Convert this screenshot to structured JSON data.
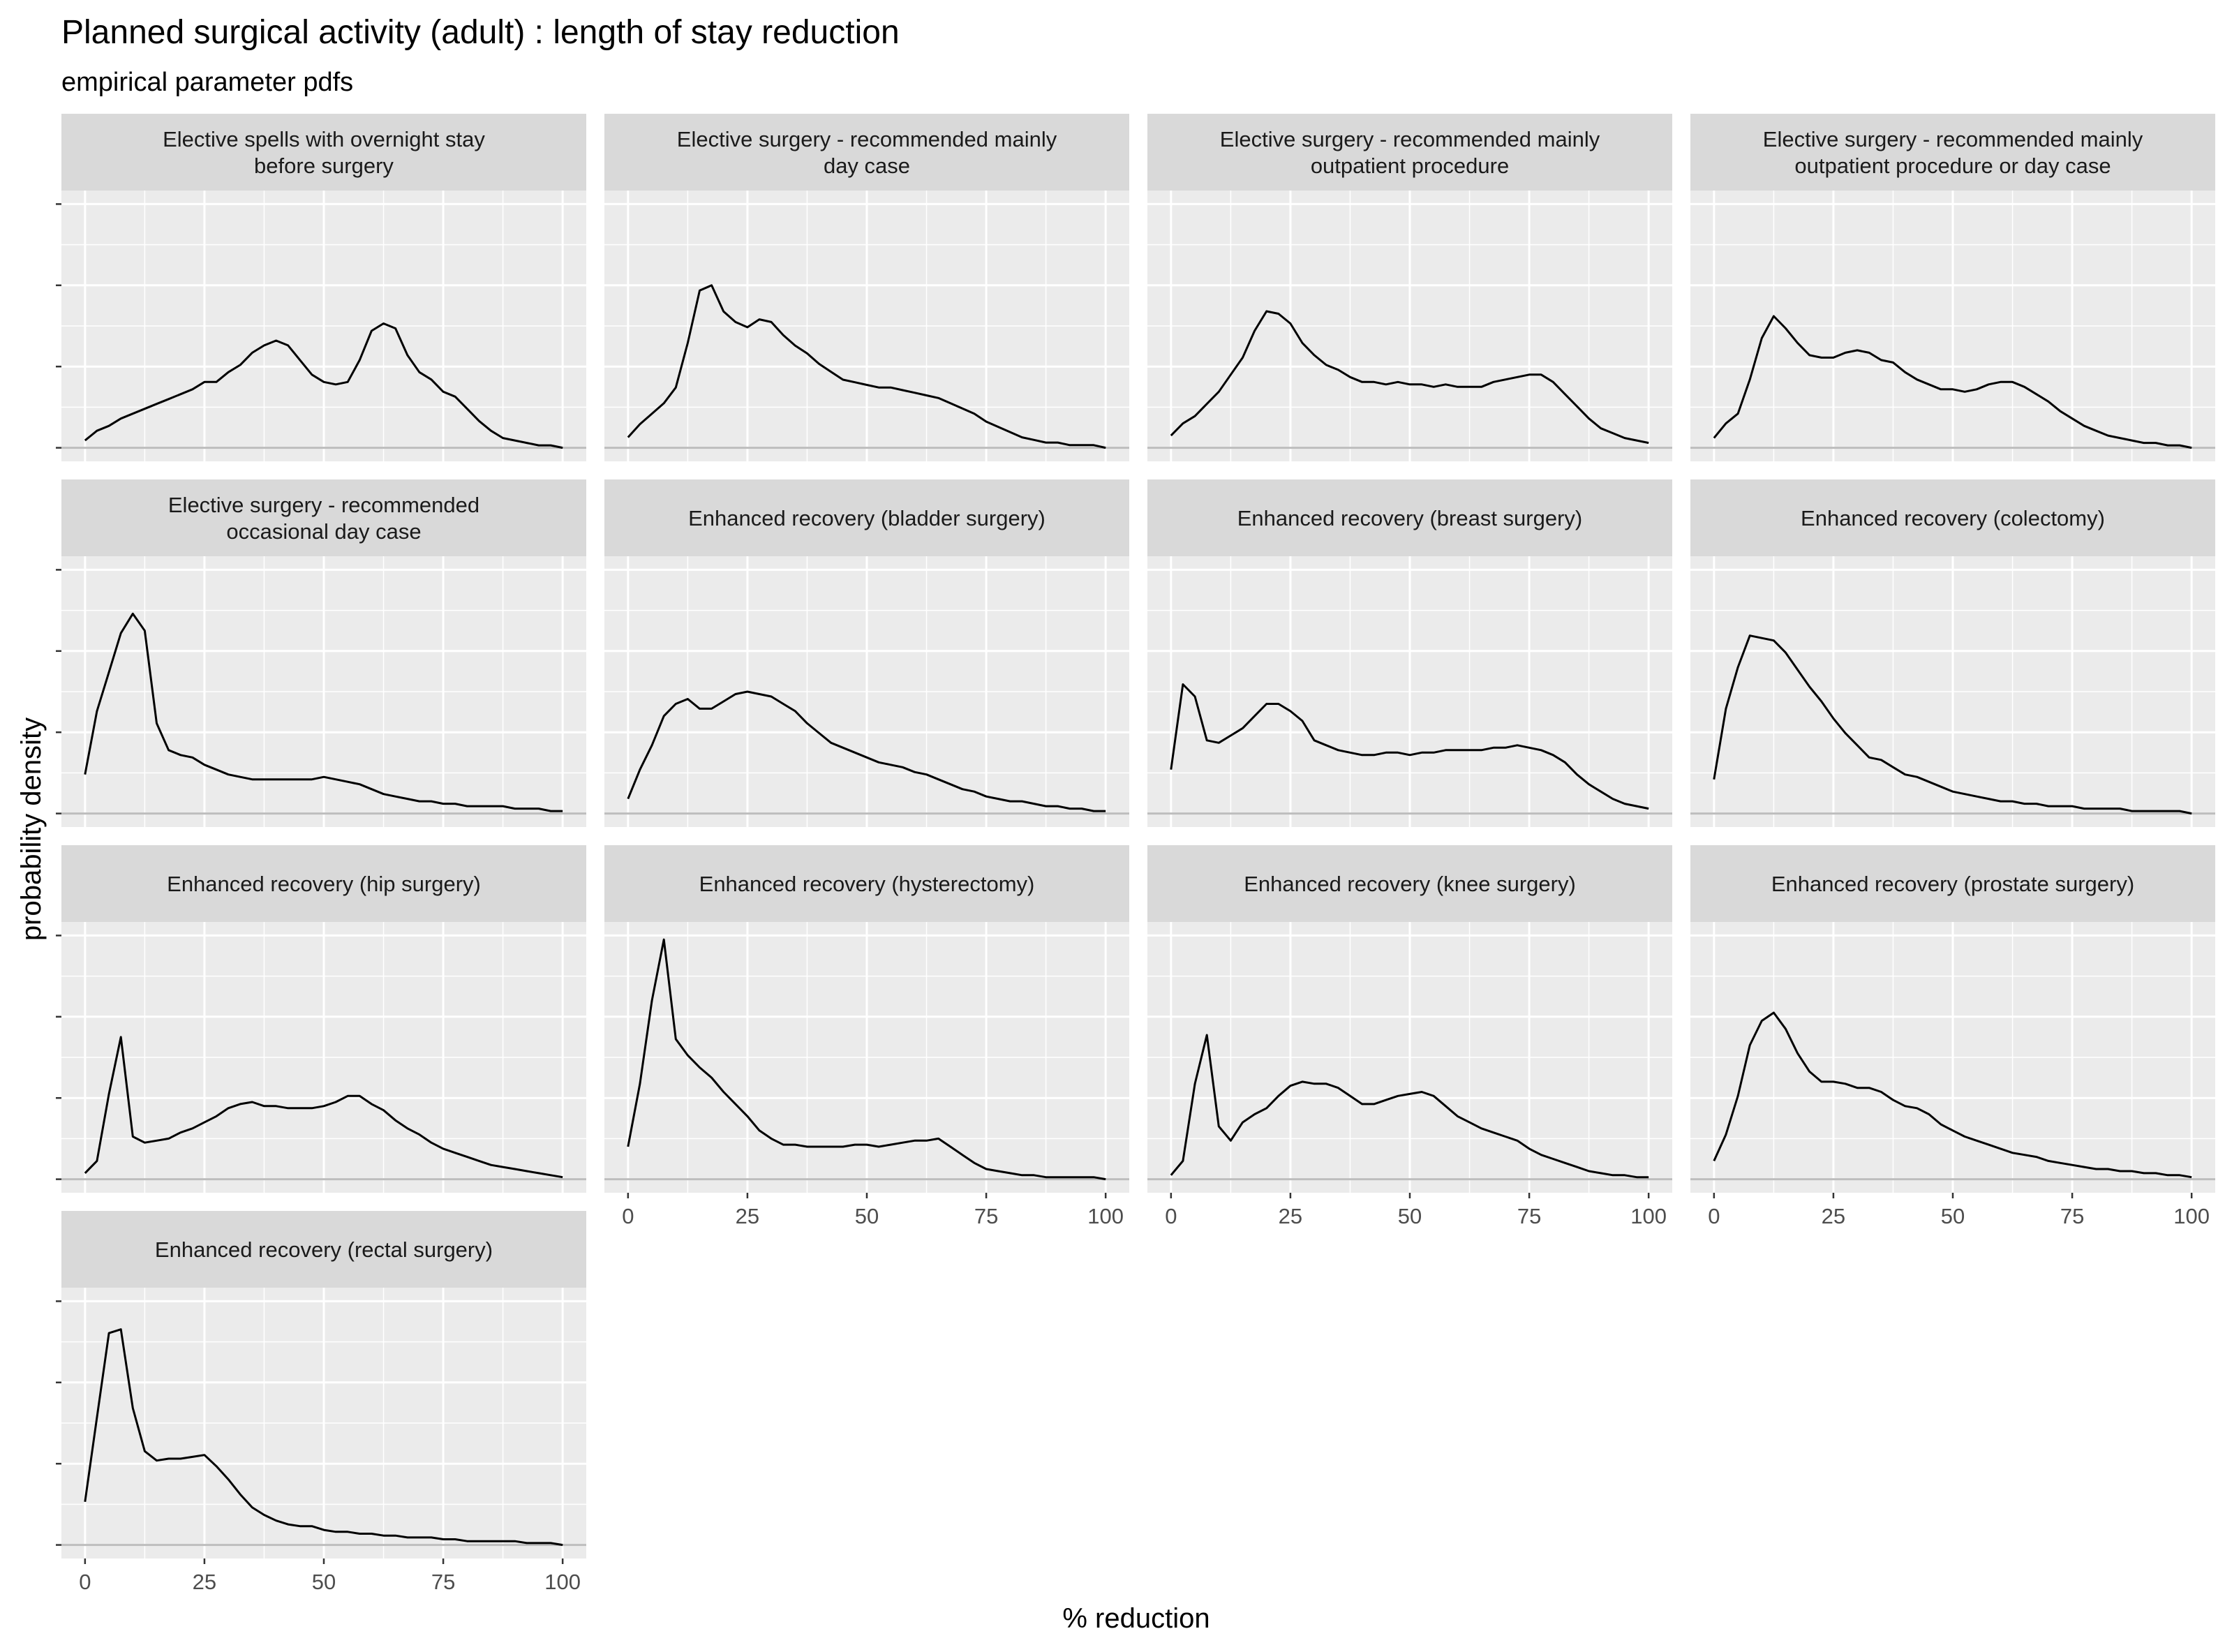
{
  "chart_data": {
    "type": "line",
    "title": "Planned surgical activity (adult) : length of stay reduction",
    "subtitle": "empirical parameter pdfs",
    "xlabel": "% reduction",
    "ylabel": "probability density",
    "xlim": [
      0,
      100
    ],
    "x_ticks": [
      0,
      25,
      50,
      75,
      100
    ],
    "y_tick_labels_shown": false,
    "facet_layout": {
      "columns": 4,
      "rows": 4,
      "free_y": true
    },
    "colors": {
      "panel_background": "#ebebeb",
      "strip_background": "#d9d9d9",
      "grid": "#ffffff",
      "line": "#000000",
      "baseline": "#bdbdbd"
    },
    "panels": [
      {
        "title_lines": [
          "Elective spells with overnight stay",
          "before surgery"
        ],
        "x": [
          0,
          2.5,
          5,
          7.5,
          10,
          12.5,
          15,
          17.5,
          20,
          22.5,
          25,
          27.5,
          30,
          32.5,
          35,
          37.5,
          40,
          42.5,
          45,
          47.5,
          50,
          52.5,
          55,
          57.5,
          60,
          62.5,
          65,
          67.5,
          70,
          72.5,
          75,
          77.5,
          80,
          82.5,
          85,
          87.5,
          90,
          92.5,
          95,
          97.5,
          100
        ],
        "y": [
          0.03,
          0.07,
          0.09,
          0.12,
          0.14,
          0.16,
          0.18,
          0.2,
          0.22,
          0.24,
          0.27,
          0.27,
          0.31,
          0.34,
          0.39,
          0.42,
          0.44,
          0.42,
          0.36,
          0.3,
          0.27,
          0.26,
          0.27,
          0.36,
          0.48,
          0.51,
          0.49,
          0.38,
          0.31,
          0.28,
          0.23,
          0.21,
          0.16,
          0.11,
          0.07,
          0.04,
          0.03,
          0.02,
          0.01,
          0.01,
          0.0
        ],
        "ylim": [
          0,
          1.0
        ]
      },
      {
        "title_lines": [
          "Elective surgery - recommended mainly",
          "day case"
        ],
        "x": [
          0,
          2.5,
          5,
          7.5,
          10,
          12.5,
          15,
          17.5,
          20,
          22.5,
          25,
          27.5,
          30,
          32.5,
          35,
          37.5,
          40,
          42.5,
          45,
          47.5,
          50,
          52.5,
          55,
          57.5,
          60,
          62.5,
          65,
          67.5,
          70,
          72.5,
          75,
          77.5,
          80,
          82.5,
          85,
          87.5,
          90,
          92.5,
          95,
          97.5,
          100
        ],
        "y": [
          0.04,
          0.09,
          0.13,
          0.17,
          0.23,
          0.4,
          0.6,
          0.62,
          0.52,
          0.48,
          0.46,
          0.49,
          0.48,
          0.43,
          0.39,
          0.36,
          0.32,
          0.29,
          0.26,
          0.25,
          0.24,
          0.23,
          0.23,
          0.22,
          0.21,
          0.2,
          0.19,
          0.17,
          0.15,
          0.13,
          0.1,
          0.08,
          0.06,
          0.04,
          0.03,
          0.02,
          0.02,
          0.01,
          0.01,
          0.01,
          0.0
        ],
        "ylim": [
          0,
          0.93
        ]
      },
      {
        "title_lines": [
          "Elective surgery - recommended mainly",
          "outpatient procedure"
        ],
        "x": [
          0,
          2.5,
          5,
          7.5,
          10,
          12.5,
          15,
          17.5,
          20,
          22.5,
          25,
          27.5,
          30,
          32.5,
          35,
          37.5,
          40,
          42.5,
          45,
          47.5,
          50,
          52.5,
          55,
          57.5,
          60,
          62.5,
          65,
          67.5,
          70,
          72.5,
          75,
          77.5,
          80,
          82.5,
          85,
          87.5,
          90,
          92.5,
          95,
          97.5,
          100
        ],
        "y": [
          0.05,
          0.1,
          0.13,
          0.18,
          0.23,
          0.3,
          0.37,
          0.48,
          0.56,
          0.55,
          0.51,
          0.43,
          0.38,
          0.34,
          0.32,
          0.29,
          0.27,
          0.27,
          0.26,
          0.27,
          0.26,
          0.26,
          0.25,
          0.26,
          0.25,
          0.25,
          0.25,
          0.27,
          0.28,
          0.29,
          0.3,
          0.3,
          0.27,
          0.22,
          0.17,
          0.12,
          0.08,
          0.06,
          0.04,
          0.03,
          0.02
        ],
        "ylim": [
          0,
          1.0
        ]
      },
      {
        "title_lines": [
          "Elective surgery - recommended mainly",
          "outpatient procedure or day case"
        ],
        "x": [
          0,
          2.5,
          5,
          7.5,
          10,
          12.5,
          15,
          17.5,
          20,
          22.5,
          25,
          27.5,
          30,
          32.5,
          35,
          37.5,
          40,
          42.5,
          45,
          47.5,
          50,
          52.5,
          55,
          57.5,
          60,
          62.5,
          65,
          67.5,
          70,
          72.5,
          75,
          77.5,
          80,
          82.5,
          85,
          87.5,
          90,
          92.5,
          95,
          97.5,
          100
        ],
        "y": [
          0.04,
          0.1,
          0.14,
          0.28,
          0.45,
          0.54,
          0.49,
          0.43,
          0.38,
          0.37,
          0.37,
          0.39,
          0.4,
          0.39,
          0.36,
          0.35,
          0.31,
          0.28,
          0.26,
          0.24,
          0.24,
          0.23,
          0.24,
          0.26,
          0.27,
          0.27,
          0.25,
          0.22,
          0.19,
          0.15,
          0.12,
          0.09,
          0.07,
          0.05,
          0.04,
          0.03,
          0.02,
          0.02,
          0.01,
          0.01,
          0.0
        ],
        "ylim": [
          0,
          1.0
        ]
      },
      {
        "title_lines": [
          "Elective surgery - recommended",
          "occasional day case"
        ],
        "x": [
          0,
          2.5,
          5,
          7.5,
          10,
          12.5,
          15,
          17.5,
          20,
          22.5,
          25,
          27.5,
          30,
          32.5,
          35,
          37.5,
          40,
          42.5,
          45,
          47.5,
          50,
          52.5,
          55,
          57.5,
          60,
          62.5,
          65,
          67.5,
          70,
          72.5,
          75,
          77.5,
          80,
          82.5,
          85,
          87.5,
          90,
          92.5,
          95,
          97.5,
          100
        ],
        "y": [
          0.16,
          0.42,
          0.58,
          0.74,
          0.82,
          0.75,
          0.37,
          0.26,
          0.24,
          0.23,
          0.2,
          0.18,
          0.16,
          0.15,
          0.14,
          0.14,
          0.14,
          0.14,
          0.14,
          0.14,
          0.15,
          0.14,
          0.13,
          0.12,
          0.1,
          0.08,
          0.07,
          0.06,
          0.05,
          0.05,
          0.04,
          0.04,
          0.03,
          0.03,
          0.03,
          0.03,
          0.02,
          0.02,
          0.02,
          0.01,
          0.01
        ],
        "ylim": [
          0,
          1.0
        ]
      },
      {
        "title_lines": [
          "Enhanced recovery (bladder surgery)"
        ],
        "x": [
          0,
          2.5,
          5,
          7.5,
          10,
          12.5,
          15,
          17.5,
          20,
          22.5,
          25,
          27.5,
          30,
          32.5,
          35,
          37.5,
          40,
          42.5,
          45,
          47.5,
          50,
          52.5,
          55,
          57.5,
          60,
          62.5,
          65,
          67.5,
          70,
          72.5,
          75,
          77.5,
          80,
          82.5,
          85,
          87.5,
          90,
          92.5,
          95,
          97.5,
          100
        ],
        "y": [
          0.06,
          0.18,
          0.28,
          0.4,
          0.45,
          0.47,
          0.43,
          0.43,
          0.46,
          0.49,
          0.5,
          0.49,
          0.48,
          0.45,
          0.42,
          0.37,
          0.33,
          0.29,
          0.27,
          0.25,
          0.23,
          0.21,
          0.2,
          0.19,
          0.17,
          0.16,
          0.14,
          0.12,
          0.1,
          0.09,
          0.07,
          0.06,
          0.05,
          0.05,
          0.04,
          0.03,
          0.03,
          0.02,
          0.02,
          0.01,
          0.01
        ],
        "ylim": [
          0,
          1.0
        ]
      },
      {
        "title_lines": [
          "Enhanced recovery (breast surgery)"
        ],
        "x": [
          0,
          2.5,
          5,
          7.5,
          10,
          12.5,
          15,
          17.5,
          20,
          22.5,
          25,
          27.5,
          30,
          32.5,
          35,
          37.5,
          40,
          42.5,
          45,
          47.5,
          50,
          52.5,
          55,
          57.5,
          60,
          62.5,
          65,
          67.5,
          70,
          72.5,
          75,
          77.5,
          80,
          82.5,
          85,
          87.5,
          90,
          92.5,
          95,
          97.5,
          100
        ],
        "y": [
          0.18,
          0.53,
          0.48,
          0.3,
          0.29,
          0.32,
          0.35,
          0.4,
          0.45,
          0.45,
          0.42,
          0.38,
          0.3,
          0.28,
          0.26,
          0.25,
          0.24,
          0.24,
          0.25,
          0.25,
          0.24,
          0.25,
          0.25,
          0.26,
          0.26,
          0.26,
          0.26,
          0.27,
          0.27,
          0.28,
          0.27,
          0.26,
          0.24,
          0.21,
          0.16,
          0.12,
          0.09,
          0.06,
          0.04,
          0.03,
          0.02
        ],
        "ylim": [
          0,
          1.0
        ]
      },
      {
        "title_lines": [
          "Enhanced recovery (colectomy)"
        ],
        "x": [
          0,
          2.5,
          5,
          7.5,
          10,
          12.5,
          15,
          17.5,
          20,
          22.5,
          25,
          27.5,
          30,
          32.5,
          35,
          37.5,
          40,
          42.5,
          45,
          47.5,
          50,
          52.5,
          55,
          57.5,
          60,
          62.5,
          65,
          67.5,
          70,
          72.5,
          75,
          77.5,
          80,
          82.5,
          85,
          87.5,
          90,
          92.5,
          95,
          97.5,
          100
        ],
        "y": [
          0.14,
          0.43,
          0.6,
          0.73,
          0.72,
          0.71,
          0.66,
          0.59,
          0.52,
          0.46,
          0.39,
          0.33,
          0.28,
          0.23,
          0.22,
          0.19,
          0.16,
          0.15,
          0.13,
          0.11,
          0.09,
          0.08,
          0.07,
          0.06,
          0.05,
          0.05,
          0.04,
          0.04,
          0.03,
          0.03,
          0.03,
          0.02,
          0.02,
          0.02,
          0.02,
          0.01,
          0.01,
          0.01,
          0.01,
          0.01,
          0.0
        ],
        "ylim": [
          0,
          1.0
        ]
      },
      {
        "title_lines": [
          "Enhanced recovery (hip surgery)"
        ],
        "x": [
          0,
          2.5,
          5,
          7.5,
          10,
          12.5,
          15,
          17.5,
          20,
          22.5,
          25,
          27.5,
          30,
          32.5,
          35,
          37.5,
          40,
          42.5,
          45,
          47.5,
          50,
          52.5,
          55,
          57.5,
          60,
          62.5,
          65,
          67.5,
          70,
          72.5,
          75,
          77.5,
          80,
          82.5,
          85,
          87.5,
          90,
          92.5,
          95,
          97.5,
          100
        ],
        "y": [
          0.03,
          0.09,
          0.42,
          0.7,
          0.21,
          0.18,
          0.19,
          0.2,
          0.23,
          0.25,
          0.28,
          0.31,
          0.35,
          0.37,
          0.38,
          0.36,
          0.36,
          0.35,
          0.35,
          0.35,
          0.36,
          0.38,
          0.41,
          0.41,
          0.37,
          0.34,
          0.29,
          0.25,
          0.22,
          0.18,
          0.15,
          0.13,
          0.11,
          0.09,
          0.07,
          0.06,
          0.05,
          0.04,
          0.03,
          0.02,
          0.01
        ],
        "ylim": [
          0,
          1.2
        ]
      },
      {
        "title_lines": [
          "Enhanced recovery (hysterectomy)"
        ],
        "x": [
          0,
          2.5,
          5,
          7.5,
          10,
          12.5,
          15,
          17.5,
          20,
          22.5,
          25,
          27.5,
          30,
          32.5,
          35,
          37.5,
          40,
          42.5,
          45,
          47.5,
          50,
          52.5,
          55,
          57.5,
          60,
          62.5,
          65,
          67.5,
          70,
          72.5,
          75,
          77.5,
          80,
          82.5,
          85,
          87.5,
          90,
          92.5,
          95,
          97.5,
          100
        ],
        "y": [
          0.16,
          0.47,
          0.88,
          1.18,
          0.69,
          0.61,
          0.55,
          0.5,
          0.43,
          0.37,
          0.31,
          0.24,
          0.2,
          0.17,
          0.17,
          0.16,
          0.16,
          0.16,
          0.16,
          0.17,
          0.17,
          0.16,
          0.17,
          0.18,
          0.19,
          0.19,
          0.2,
          0.16,
          0.12,
          0.08,
          0.05,
          0.04,
          0.03,
          0.02,
          0.02,
          0.01,
          0.01,
          0.01,
          0.01,
          0.01,
          0.0
        ],
        "ylim": [
          0,
          1.2
        ]
      },
      {
        "title_lines": [
          "Enhanced recovery (knee surgery)"
        ],
        "x": [
          0,
          2.5,
          5,
          7.5,
          10,
          12.5,
          15,
          17.5,
          20,
          22.5,
          25,
          27.5,
          30,
          32.5,
          35,
          37.5,
          40,
          42.5,
          45,
          47.5,
          50,
          52.5,
          55,
          57.5,
          60,
          62.5,
          65,
          67.5,
          70,
          72.5,
          75,
          77.5,
          80,
          82.5,
          85,
          87.5,
          90,
          92.5,
          95,
          97.5,
          100
        ],
        "y": [
          0.02,
          0.09,
          0.47,
          0.71,
          0.26,
          0.19,
          0.28,
          0.32,
          0.35,
          0.41,
          0.46,
          0.48,
          0.47,
          0.47,
          0.45,
          0.41,
          0.37,
          0.37,
          0.39,
          0.41,
          0.42,
          0.43,
          0.41,
          0.36,
          0.31,
          0.28,
          0.25,
          0.23,
          0.21,
          0.19,
          0.15,
          0.12,
          0.1,
          0.08,
          0.06,
          0.04,
          0.03,
          0.02,
          0.02,
          0.01,
          0.01
        ],
        "ylim": [
          0,
          1.2
        ]
      },
      {
        "title_lines": [
          "Enhanced recovery (prostate surgery)"
        ],
        "x": [
          0,
          2.5,
          5,
          7.5,
          10,
          12.5,
          15,
          17.5,
          20,
          22.5,
          25,
          27.5,
          30,
          32.5,
          35,
          37.5,
          40,
          42.5,
          45,
          47.5,
          50,
          52.5,
          55,
          57.5,
          60,
          62.5,
          65,
          67.5,
          70,
          72.5,
          75,
          77.5,
          80,
          82.5,
          85,
          87.5,
          90,
          92.5,
          95,
          97.5,
          100
        ],
        "y": [
          0.09,
          0.22,
          0.41,
          0.66,
          0.78,
          0.82,
          0.74,
          0.62,
          0.53,
          0.48,
          0.48,
          0.47,
          0.45,
          0.45,
          0.43,
          0.39,
          0.36,
          0.35,
          0.32,
          0.27,
          0.24,
          0.21,
          0.19,
          0.17,
          0.15,
          0.13,
          0.12,
          0.11,
          0.09,
          0.08,
          0.07,
          0.06,
          0.05,
          0.05,
          0.04,
          0.04,
          0.03,
          0.03,
          0.02,
          0.02,
          0.01
        ],
        "ylim": [
          0,
          1.2
        ]
      },
      {
        "title_lines": [
          "Enhanced recovery (rectal surgery)"
        ],
        "x": [
          0,
          2.5,
          5,
          7.5,
          10,
          12.5,
          15,
          17.5,
          20,
          22.5,
          25,
          27.5,
          30,
          32.5,
          35,
          37.5,
          40,
          42.5,
          45,
          47.5,
          50,
          52.5,
          55,
          57.5,
          60,
          62.5,
          65,
          67.5,
          70,
          72.5,
          75,
          77.5,
          80,
          82.5,
          85,
          87.5,
          90,
          92.5,
          95,
          97.5,
          100
        ],
        "y": [
          0.23,
          0.68,
          1.13,
          1.15,
          0.73,
          0.5,
          0.45,
          0.46,
          0.46,
          0.47,
          0.48,
          0.42,
          0.35,
          0.27,
          0.2,
          0.16,
          0.13,
          0.11,
          0.1,
          0.1,
          0.08,
          0.07,
          0.07,
          0.06,
          0.06,
          0.05,
          0.05,
          0.04,
          0.04,
          0.04,
          0.03,
          0.03,
          0.02,
          0.02,
          0.02,
          0.02,
          0.02,
          0.01,
          0.01,
          0.01,
          0.0
        ],
        "ylim": [
          0,
          1.3
        ]
      }
    ]
  }
}
